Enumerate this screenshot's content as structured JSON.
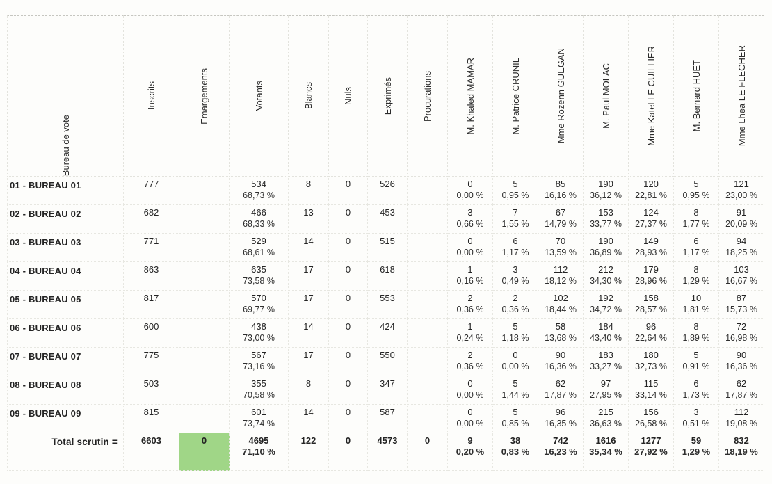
{
  "document": {
    "type": "election-results-table"
  },
  "colors": {
    "accent_green": "#a0d687",
    "text": "#242424"
  },
  "table": {
    "columns": [
      "Bureau de vote",
      "Inscrits",
      "Emargements",
      "Votants",
      "Blancs",
      "Nuls",
      "Exprimés",
      "Procurations",
      "M. Khaled MAMAR",
      "M. Patrice CRUNIL",
      "Mme Rozenn GUEGAN",
      "M. Paul MOLAC",
      "Mme Katel LE CUILLIER",
      "M. Bernard HUET",
      "Mme Lhea LE FLECHER"
    ],
    "rows": [
      {
        "label": "01 - BUREAU 01",
        "inscrits": "777",
        "emargements": "",
        "votants": {
          "v": "534",
          "p": "68,73 %"
        },
        "blancs": "8",
        "nuls": "0",
        "exprimes": "526",
        "procurations": "",
        "candidates": [
          {
            "v": "0",
            "p": "0,00 %"
          },
          {
            "v": "5",
            "p": "0,95 %"
          },
          {
            "v": "85",
            "p": "16,16 %"
          },
          {
            "v": "190",
            "p": "36,12 %"
          },
          {
            "v": "120",
            "p": "22,81 %"
          },
          {
            "v": "5",
            "p": "0,95 %"
          },
          {
            "v": "121",
            "p": "23,00 %"
          }
        ]
      },
      {
        "label": "02 - BUREAU 02",
        "inscrits": "682",
        "emargements": "",
        "votants": {
          "v": "466",
          "p": "68,33 %"
        },
        "blancs": "13",
        "nuls": "0",
        "exprimes": "453",
        "procurations": "",
        "candidates": [
          {
            "v": "3",
            "p": "0,66 %"
          },
          {
            "v": "7",
            "p": "1,55 %"
          },
          {
            "v": "67",
            "p": "14,79 %"
          },
          {
            "v": "153",
            "p": "33,77 %"
          },
          {
            "v": "124",
            "p": "27,37 %"
          },
          {
            "v": "8",
            "p": "1,77 %"
          },
          {
            "v": "91",
            "p": "20,09 %"
          }
        ]
      },
      {
        "label": "03 - BUREAU 03",
        "inscrits": "771",
        "emargements": "",
        "votants": {
          "v": "529",
          "p": "68,61 %"
        },
        "blancs": "14",
        "nuls": "0",
        "exprimes": "515",
        "procurations": "",
        "candidates": [
          {
            "v": "0",
            "p": "0,00 %"
          },
          {
            "v": "6",
            "p": "1,17 %"
          },
          {
            "v": "70",
            "p": "13,59 %"
          },
          {
            "v": "190",
            "p": "36,89 %"
          },
          {
            "v": "149",
            "p": "28,93 %"
          },
          {
            "v": "6",
            "p": "1,17 %"
          },
          {
            "v": "94",
            "p": "18,25 %"
          }
        ]
      },
      {
        "label": "04 - BUREAU 04",
        "inscrits": "863",
        "emargements": "",
        "votants": {
          "v": "635",
          "p": "73,58 %"
        },
        "blancs": "17",
        "nuls": "0",
        "exprimes": "618",
        "procurations": "",
        "candidates": [
          {
            "v": "1",
            "p": "0,16 %"
          },
          {
            "v": "3",
            "p": "0,49 %"
          },
          {
            "v": "112",
            "p": "18,12 %"
          },
          {
            "v": "212",
            "p": "34,30 %"
          },
          {
            "v": "179",
            "p": "28,96 %"
          },
          {
            "v": "8",
            "p": "1,29 %"
          },
          {
            "v": "103",
            "p": "16,67 %"
          }
        ]
      },
      {
        "label": "05 - BUREAU 05",
        "inscrits": "817",
        "emargements": "",
        "votants": {
          "v": "570",
          "p": "69,77 %"
        },
        "blancs": "17",
        "nuls": "0",
        "exprimes": "553",
        "procurations": "",
        "candidates": [
          {
            "v": "2",
            "p": "0,36 %"
          },
          {
            "v": "2",
            "p": "0,36 %"
          },
          {
            "v": "102",
            "p": "18,44 %"
          },
          {
            "v": "192",
            "p": "34,72 %"
          },
          {
            "v": "158",
            "p": "28,57 %"
          },
          {
            "v": "10",
            "p": "1,81 %"
          },
          {
            "v": "87",
            "p": "15,73 %"
          }
        ]
      },
      {
        "label": "06 - BUREAU 06",
        "inscrits": "600",
        "emargements": "",
        "votants": {
          "v": "438",
          "p": "73,00 %"
        },
        "blancs": "14",
        "nuls": "0",
        "exprimes": "424",
        "procurations": "",
        "candidates": [
          {
            "v": "1",
            "p": "0,24 %"
          },
          {
            "v": "5",
            "p": "1,18 %"
          },
          {
            "v": "58",
            "p": "13,68 %"
          },
          {
            "v": "184",
            "p": "43,40 %"
          },
          {
            "v": "96",
            "p": "22,64 %"
          },
          {
            "v": "8",
            "p": "1,89 %"
          },
          {
            "v": "72",
            "p": "16,98 %"
          }
        ]
      },
      {
        "label": "07 - BUREAU 07",
        "inscrits": "775",
        "emargements": "",
        "votants": {
          "v": "567",
          "p": "73,16 %"
        },
        "blancs": "17",
        "nuls": "0",
        "exprimes": "550",
        "procurations": "",
        "candidates": [
          {
            "v": "2",
            "p": "0,36 %"
          },
          {
            "v": "0",
            "p": "0,00 %"
          },
          {
            "v": "90",
            "p": "16,36 %"
          },
          {
            "v": "183",
            "p": "33,27 %"
          },
          {
            "v": "180",
            "p": "32,73 %"
          },
          {
            "v": "5",
            "p": "0,91 %"
          },
          {
            "v": "90",
            "p": "16,36 %"
          }
        ]
      },
      {
        "label": "08 - BUREAU 08",
        "inscrits": "503",
        "emargements": "",
        "votants": {
          "v": "355",
          "p": "70,58 %"
        },
        "blancs": "8",
        "nuls": "0",
        "exprimes": "347",
        "procurations": "",
        "candidates": [
          {
            "v": "0",
            "p": "0,00 %"
          },
          {
            "v": "5",
            "p": "1,44 %"
          },
          {
            "v": "62",
            "p": "17,87 %"
          },
          {
            "v": "97",
            "p": "27,95 %"
          },
          {
            "v": "115",
            "p": "33,14 %"
          },
          {
            "v": "6",
            "p": "1,73 %"
          },
          {
            "v": "62",
            "p": "17,87 %"
          }
        ]
      },
      {
        "label": "09 - BUREAU 09",
        "inscrits": "815",
        "emargements": "",
        "votants": {
          "v": "601",
          "p": "73,74 %"
        },
        "blancs": "14",
        "nuls": "0",
        "exprimes": "587",
        "procurations": "",
        "candidates": [
          {
            "v": "0",
            "p": "0,00 %"
          },
          {
            "v": "5",
            "p": "0,85 %"
          },
          {
            "v": "96",
            "p": "16,35 %"
          },
          {
            "v": "215",
            "p": "36,63 %"
          },
          {
            "v": "156",
            "p": "26,58 %"
          },
          {
            "v": "3",
            "p": "0,51 %"
          },
          {
            "v": "112",
            "p": "19,08 %"
          }
        ]
      }
    ],
    "total": {
      "label": "Total scrutin =",
      "inscrits": "6603",
      "emargements": "0",
      "votants": {
        "v": "4695",
        "p": "71,10 %"
      },
      "blancs": "122",
      "nuls": "0",
      "exprimes": "4573",
      "procurations": "0",
      "candidates": [
        {
          "v": "9",
          "p": "0,20 %"
        },
        {
          "v": "38",
          "p": "0,83 %"
        },
        {
          "v": "742",
          "p": "16,23 %"
        },
        {
          "v": "1616",
          "p": "35,34 %"
        },
        {
          "v": "1277",
          "p": "27,92 %"
        },
        {
          "v": "59",
          "p": "1,29 %"
        },
        {
          "v": "832",
          "p": "18,19 %"
        }
      ]
    }
  }
}
